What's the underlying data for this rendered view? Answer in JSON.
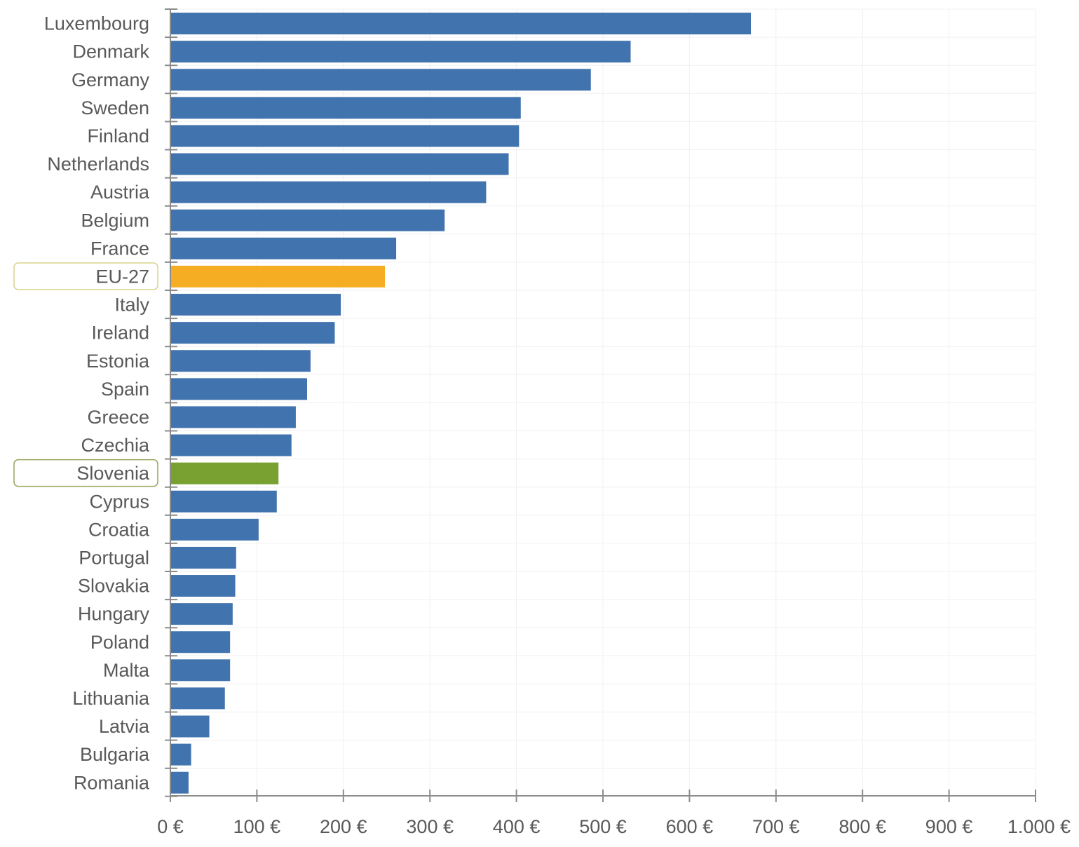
{
  "chart_data": {
    "type": "bar",
    "orientation": "horizontal",
    "title": "",
    "xlabel": "",
    "ylabel": "",
    "categories": [
      "Luxembourg",
      "Denmark",
      "Germany",
      "Sweden",
      "Finland",
      "Netherlands",
      "Austria",
      "Belgium",
      "France",
      "EU-27",
      "Italy",
      "Ireland",
      "Estonia",
      "Spain",
      "Greece",
      "Czechia",
      "Slovenia",
      "Cyprus",
      "Croatia",
      "Portugal",
      "Slovakia",
      "Hungary",
      "Poland",
      "Malta",
      "Lithuania",
      "Latvia",
      "Bulgaria",
      "Romania"
    ],
    "values": [
      671,
      532,
      486,
      405,
      403,
      391,
      365,
      317,
      261,
      248,
      197,
      190,
      162,
      158,
      145,
      140,
      125,
      123,
      102,
      76,
      75,
      72,
      69,
      69,
      63,
      45,
      24,
      21
    ],
    "xlim": [
      0,
      1000
    ],
    "x_ticks": [
      0,
      100,
      200,
      300,
      400,
      500,
      600,
      700,
      800,
      900,
      1000
    ],
    "x_tick_labels": [
      "0 €",
      "100 €",
      "200 €",
      "300 €",
      "400 €",
      "500 €",
      "600 €",
      "700 €",
      "800 €",
      "900 €",
      "1.000 €"
    ],
    "grid": true,
    "legend": "none",
    "colors": {
      "default": "#4173ae",
      "eu": "#f5ae24",
      "slovenia": "#78a132",
      "eu_box": "#d9d38a",
      "slovenia_box": "#96a65e"
    },
    "highlights": {
      "EU-27": "eu",
      "Slovenia": "slovenia"
    }
  }
}
